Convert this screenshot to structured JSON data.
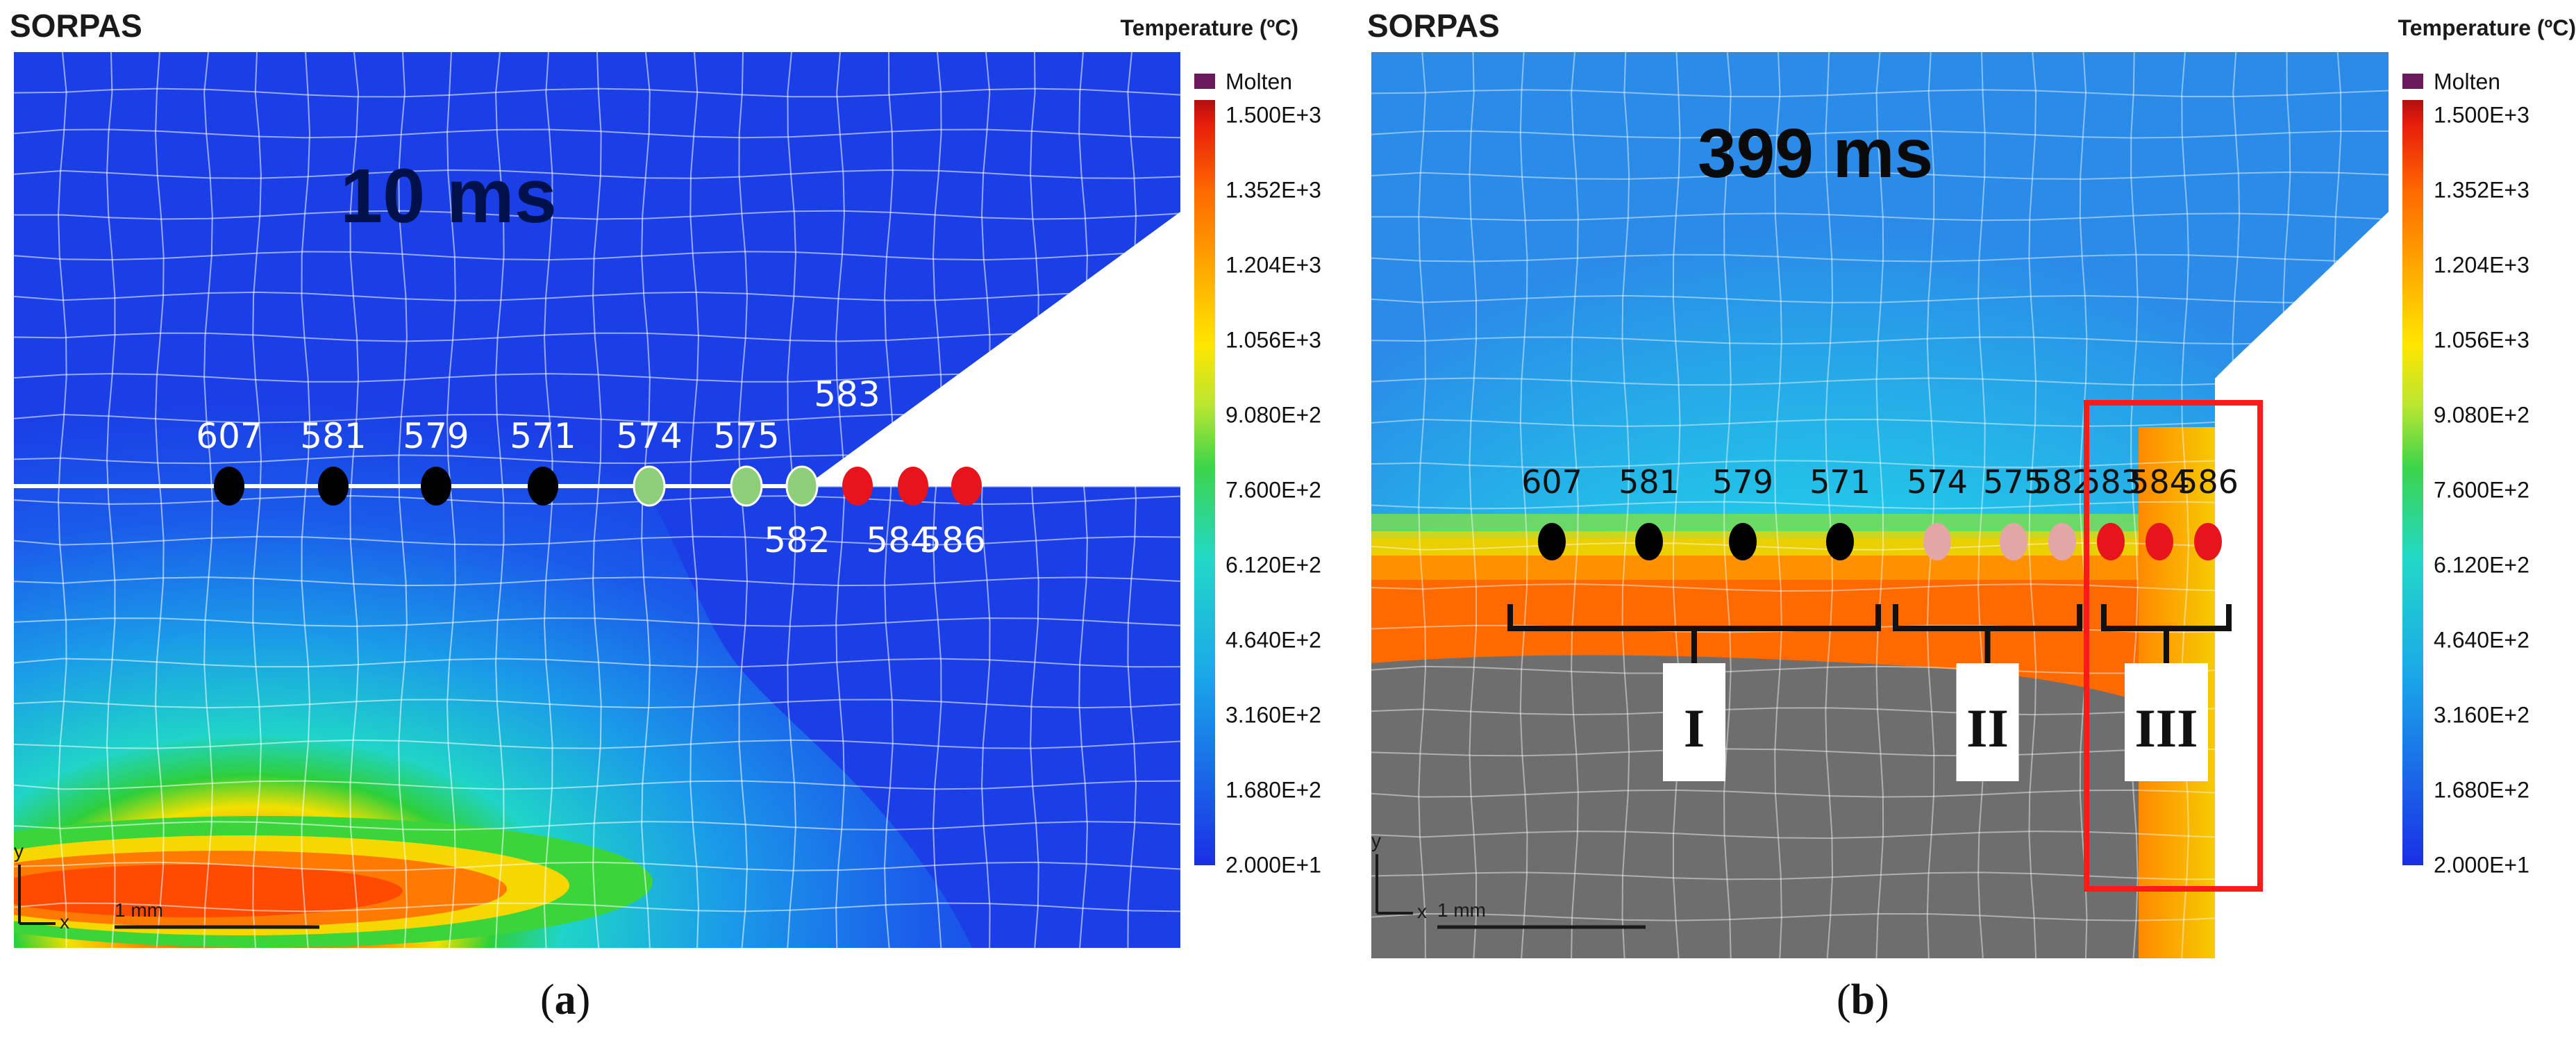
{
  "panel_a": {
    "app_title": "SORPAS",
    "legend_title": "Temperature (ºC)",
    "time_label": "10 ms",
    "scale_label": "1 mm",
    "axis_y": "y",
    "axis_x": "x",
    "caption_open": "(",
    "caption_letter": "a",
    "caption_close": ")",
    "nodes": [
      {
        "id": "607",
        "color": "#000000"
      },
      {
        "id": "581",
        "color": "#000000"
      },
      {
        "id": "579",
        "color": "#000000"
      },
      {
        "id": "571",
        "color": "#000000"
      },
      {
        "id": "574",
        "color": "#8fcf7a"
      },
      {
        "id": "575",
        "color": "#8fcf7a"
      },
      {
        "id": "582",
        "color": "#8fcf7a"
      },
      {
        "id": "583",
        "color": "#e8141c"
      },
      {
        "id": "584",
        "color": "#e8141c"
      },
      {
        "id": "586",
        "color": "#e8141c"
      }
    ]
  },
  "panel_b": {
    "app_title": "SORPAS",
    "legend_title": "Temperature (ºC)",
    "time_label": "399 ms",
    "scale_label": "1 mm",
    "axis_y": "y",
    "axis_x": "x",
    "caption_open": "(",
    "caption_letter": "b",
    "caption_close": ")",
    "nodes": [
      {
        "id": "607",
        "color": "#000000"
      },
      {
        "id": "581",
        "color": "#000000"
      },
      {
        "id": "579",
        "color": "#000000"
      },
      {
        "id": "571",
        "color": "#000000"
      },
      {
        "id": "574",
        "color": "#e2a6a6"
      },
      {
        "id": "575",
        "color": "#e2a6a6"
      },
      {
        "id": "582",
        "color": "#e2a6a6"
      },
      {
        "id": "583",
        "color": "#e8141c"
      },
      {
        "id": "584",
        "color": "#e8141c"
      },
      {
        "id": "586",
        "color": "#e8141c"
      }
    ],
    "groups": [
      "I",
      "II",
      "III"
    ]
  },
  "legend": {
    "molten_label": "Molten",
    "molten_color": "#6a1a5a",
    "values": [
      "1.500E+3",
      "1.352E+3",
      "1.204E+3",
      "1.056E+3",
      "9.080E+2",
      "7.600E+2",
      "6.120E+2",
      "4.640E+2",
      "3.160E+2",
      "1.680E+2",
      "2.000E+1"
    ]
  },
  "colors": {
    "highlight_box": "#ff1a1a",
    "cold_blue": "#1a3fe6",
    "mesh_line": "#ffffff"
  }
}
